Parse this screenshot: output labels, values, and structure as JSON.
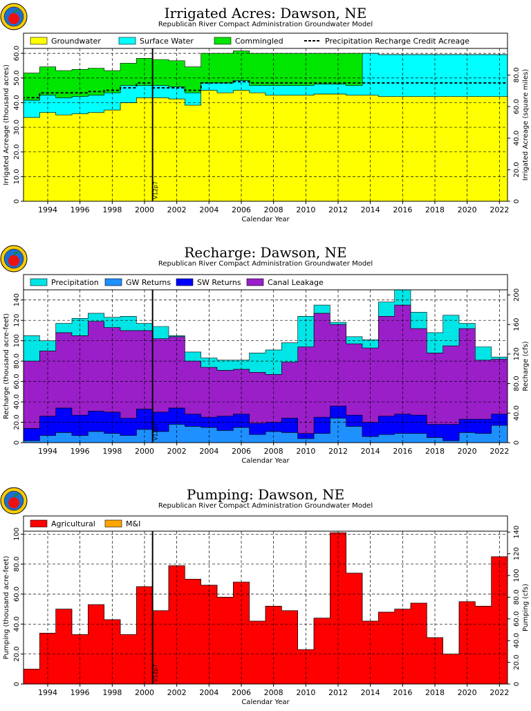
{
  "panels": [
    {
      "title": "Irrigated Acres: Dawson, NE",
      "subtitle": "Republican River Compact Administration Groundwater Model",
      "xlabel": "Calendar Year",
      "ylabel_left": "Irrigated Acreage (thousand acres)",
      "ylabel_right": "Irrigated Acreage (square miles)",
      "marker_label": "V12p7",
      "legend": [
        {
          "label": "Groundwater",
          "color": "#ffff00",
          "kind": "box"
        },
        {
          "label": "Surface Water",
          "color": "#00ffff",
          "kind": "box"
        },
        {
          "label": "Commingled",
          "color": "#00e600",
          "kind": "box"
        },
        {
          "label": "Precipitation Recharge Credit Acreage",
          "color": "#000000",
          "kind": "dash"
        }
      ]
    },
    {
      "title": "Recharge: Dawson, NE",
      "subtitle": "Republican River Compact Administration Groundwater Model",
      "xlabel": "Calendar Year",
      "ylabel_left": "Recharge (thousand acre-feet)",
      "ylabel_right": "Recharge (cfs)",
      "marker_label": "V12p7",
      "legend": [
        {
          "label": "Precipitation",
          "color": "#00e5e5",
          "kind": "box"
        },
        {
          "label": "GW Returns",
          "color": "#1e90ff",
          "kind": "box"
        },
        {
          "label": "SW Returns",
          "color": "#0000ff",
          "kind": "box"
        },
        {
          "label": "Canal Leakage",
          "color": "#9a1fc8",
          "kind": "box"
        }
      ]
    },
    {
      "title": "Pumping: Dawson, NE",
      "subtitle": "Republican River Compact Administration Groundwater Model",
      "xlabel": "Calendar Year",
      "ylabel_left": "Pumping (thousand acre-feet)",
      "ylabel_right": "Pumping (cfs)",
      "marker_label": "V12p7",
      "legend": [
        {
          "label": "Agricultural",
          "color": "#ff0000",
          "kind": "box"
        },
        {
          "label": "M&I",
          "color": "#ffa500",
          "kind": "box"
        }
      ]
    }
  ],
  "chart_data": [
    {
      "type": "area",
      "stacked": true,
      "step": true,
      "x_range": [
        1993,
        2022
      ],
      "xticks": [
        "1994",
        "1996",
        "1998",
        "2000",
        "2002",
        "2004",
        "2006",
        "2008",
        "2010",
        "2012",
        "2014",
        "2016",
        "2018",
        "2020",
        "2022"
      ],
      "ylim": [
        0,
        62
      ],
      "yticks": [
        "0",
        "10.0",
        "20.0",
        "30.0",
        "40.0",
        "50.0",
        "60.0"
      ],
      "ylim_right": [
        0,
        96.9
      ],
      "yticks_right": [
        "0",
        "20.0",
        "40.0",
        "60.0",
        "80.0"
      ],
      "grid": true,
      "marker_year": 2000.5,
      "years": [
        1992,
        1993,
        1994,
        1995,
        1996,
        1997,
        1998,
        1999,
        2000,
        2001,
        2002,
        2003,
        2004,
        2005,
        2006,
        2007,
        2008,
        2009,
        2010,
        2011,
        2012,
        2013,
        2014,
        2015,
        2016,
        2017,
        2018,
        2019,
        2020,
        2021,
        2022
      ],
      "series": [
        {
          "name": "Groundwater",
          "color": "#ffff00",
          "values": [
            34,
            34,
            36,
            35,
            35.5,
            36,
            37,
            40,
            42,
            42,
            41.5,
            39,
            45,
            44,
            45,
            44,
            43,
            43,
            43,
            43.5,
            43.5,
            43,
            43,
            42.5,
            42.5,
            42.5,
            42.5,
            42.5,
            42.5,
            42.5,
            42.5
          ]
        },
        {
          "name": "Surface Water",
          "color": "#00ffff",
          "values": [
            7,
            7,
            7,
            7,
            7,
            7,
            7,
            7,
            5,
            5,
            5,
            5,
            3,
            4,
            4,
            3,
            4,
            4,
            4,
            4,
            4,
            4,
            17,
            17,
            17,
            17,
            17,
            17,
            17,
            17,
            17
          ]
        },
        {
          "name": "Commingled",
          "color": "#00e600",
          "values": [
            11,
            11,
            11.5,
            11,
            11,
            11,
            9,
            9,
            11,
            10.5,
            10.5,
            10.5,
            12,
            12,
            12,
            13,
            13,
            13,
            13,
            12.5,
            12.5,
            13,
            0,
            0,
            0,
            0,
            0,
            0,
            0,
            0,
            0
          ]
        }
      ],
      "line_series": {
        "name": "Precipitation Recharge Credit Acreage",
        "values": [
          42,
          42,
          44,
          44,
          44,
          44.5,
          45,
          46,
          48,
          46,
          46,
          45,
          48,
          48,
          48.5,
          48,
          48,
          48,
          48,
          48,
          48,
          48,
          48,
          48,
          48,
          48,
          48,
          48,
          48,
          48,
          48
        ]
      }
    },
    {
      "type": "area",
      "stacked": true,
      "step": true,
      "x_range": [
        1993,
        2022
      ],
      "xticks": [
        "1994",
        "1996",
        "1998",
        "2000",
        "2002",
        "2004",
        "2006",
        "2008",
        "2010",
        "2012",
        "2014",
        "2016",
        "2018",
        "2020",
        "2022"
      ],
      "ylim": [
        0,
        150
      ],
      "yticks": [
        "0",
        "20.0",
        "40.0",
        "60.0",
        "80.0",
        "100",
        "120",
        "140"
      ],
      "ylim_right": [
        0,
        207
      ],
      "yticks_right": [
        "0",
        "40.0",
        "80.0",
        "120",
        "160",
        "200"
      ],
      "grid": true,
      "marker_year": 2000.5,
      "years": [
        1992,
        1993,
        1994,
        1995,
        1996,
        1997,
        1998,
        1999,
        2000,
        2001,
        2002,
        2003,
        2004,
        2005,
        2006,
        2007,
        2008,
        2009,
        2010,
        2011,
        2012,
        2013,
        2014,
        2015,
        2016,
        2017,
        2018,
        2019,
        2020,
        2021,
        2022
      ],
      "series": [
        {
          "name": "GW Returns",
          "color": "#1e90ff",
          "values": [
            2,
            2,
            7,
            10,
            7,
            11,
            9,
            7,
            13,
            11,
            18,
            16,
            15,
            12,
            15,
            8,
            11,
            10,
            4,
            9,
            24,
            16,
            6,
            8,
            9,
            9,
            5,
            2,
            10,
            9,
            17
          ]
        },
        {
          "name": "SW Returns",
          "color": "#0000ff",
          "values": [
            12,
            12,
            19,
            24,
            20,
            20,
            21,
            17,
            20,
            19,
            16,
            12,
            10,
            14,
            13,
            11,
            9,
            14,
            5,
            16,
            12,
            11,
            14,
            18,
            19,
            18,
            13,
            16,
            13,
            14,
            11
          ]
        },
        {
          "name": "Canal Leakage",
          "color": "#9a1fc8",
          "values": [
            66,
            66,
            64,
            74,
            78,
            88,
            83,
            86,
            77,
            72,
            70,
            52,
            49,
            45,
            44,
            50,
            47,
            55,
            85,
            102,
            80,
            70,
            73,
            98,
            107,
            85,
            70,
            77,
            89,
            58,
            54
          ]
        },
        {
          "name": "Precipitation",
          "color": "#00e5e5",
          "values": [
            25,
            25,
            10,
            9,
            17,
            8,
            10,
            14,
            7,
            12,
            1,
            9,
            9,
            10,
            9,
            19,
            24,
            19,
            30,
            8,
            2,
            7,
            8,
            14,
            15,
            16,
            20,
            30,
            5,
            13,
            2
          ]
        }
      ]
    },
    {
      "type": "bar",
      "stacked": true,
      "step": true,
      "x_range": [
        1993,
        2022
      ],
      "xticks": [
        "1994",
        "1996",
        "1998",
        "2000",
        "2002",
        "2004",
        "2006",
        "2008",
        "2010",
        "2012",
        "2014",
        "2016",
        "2018",
        "2020",
        "2022"
      ],
      "ylim": [
        0,
        102
      ],
      "yticks": [
        "0",
        "20.0",
        "40.0",
        "60.0",
        "80.0",
        "100"
      ],
      "ylim_right": [
        0,
        140.8
      ],
      "yticks_right": [
        "0",
        "20.0",
        "40.0",
        "60.0",
        "80.0",
        "100",
        "120",
        "140"
      ],
      "grid": true,
      "marker_year": 2000.5,
      "years": [
        1992,
        1993,
        1994,
        1995,
        1996,
        1997,
        1998,
        1999,
        2000,
        2001,
        2002,
        2003,
        2004,
        2005,
        2006,
        2007,
        2008,
        2009,
        2010,
        2011,
        2012,
        2013,
        2014,
        2015,
        2016,
        2017,
        2018,
        2019,
        2020,
        2021,
        2022
      ],
      "series": [
        {
          "name": "Agricultural",
          "color": "#ff0000",
          "values": [
            10,
            10,
            34,
            50,
            33,
            53,
            43,
            33,
            65,
            49,
            79,
            70,
            66,
            58,
            68,
            42,
            52,
            49,
            23,
            44,
            101,
            74,
            42,
            48,
            50,
            54,
            31,
            20,
            55,
            52,
            85
          ]
        },
        {
          "name": "M&I",
          "color": "#ffa500",
          "values": [
            0,
            0,
            0,
            0,
            0,
            0,
            0,
            0,
            0,
            0,
            0,
            0,
            0,
            0,
            0,
            0,
            0,
            0,
            0,
            0,
            0,
            0,
            0,
            0,
            0,
            0,
            0,
            0,
            0,
            0,
            0
          ]
        }
      ]
    }
  ]
}
